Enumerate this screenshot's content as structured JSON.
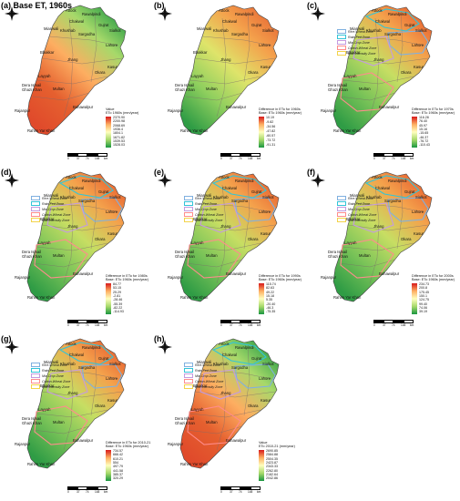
{
  "zones": [
    {
      "name": "Rice-Wheat Zone",
      "color": "#7fb0e0"
    },
    {
      "name": "Rain-Fed Zone",
      "color": "#33c4d8"
    },
    {
      "name": "Mix-Crop Zone",
      "color": "#c49be0"
    },
    {
      "name": "Cotton-Wheat Zone",
      "color": "#ff8c8c"
    },
    {
      "name": "Low-Intensity Zone",
      "color": "#f3d34a"
    }
  ],
  "panels": [
    {
      "label": "(a) Base ET, 1960s",
      "legend_title": [
        "Value",
        "ETo 1960s (mm/year)"
      ],
      "ticks": [
        "2370.90",
        "2200.98",
        "2068.69",
        "1936.4",
        "1804.1",
        "1671.82",
        "1539.53",
        "1528.03"
      ],
      "ramp": [
        "#d7191c",
        "#fdae61",
        "#ffffbf",
        "#a6d96a",
        "#1a9641"
      ],
      "gradient": [
        "#1a9641",
        "#a6d96a",
        "#fdae61",
        "#e5602f",
        "#e04a2b"
      ],
      "show_zones": false,
      "cities": [
        "Attock",
        "Rawalpindi",
        "Chakwal",
        "Mianwali",
        "Khushab",
        "Sargodha",
        "Bhakkar",
        "Jhang",
        "Layyah",
        "Dera Ismail Ghazi Khan",
        "Multan",
        "Bahawalpur",
        "Rajanpur",
        "Rahim Yar Khan",
        "Lahore",
        "Okara",
        "Kasur",
        "Gujrat",
        "Sialkot"
      ]
    },
    {
      "label": "(b)",
      "legend_title": [
        "Difference in ETo for 1960s",
        "Base: ETo 1960s (mm/year)"
      ],
      "ticks": [
        "10.19",
        "-9.82",
        "-34.56",
        "-47.82",
        "-60.57",
        "-73.72",
        "-91.31"
      ],
      "ramp": [
        "#d7191c",
        "#fdae61",
        "#ffffbf",
        "#a6d96a",
        "#1a9641"
      ],
      "gradient": [
        "#e66432",
        "#f4a24c",
        "#dfe46a",
        "#8fcf5e",
        "#2f9c45"
      ],
      "show_zones": false,
      "cities": [
        "Attock",
        "Rawalpindi",
        "Chakwal",
        "Mianwali",
        "Khushab",
        "Sargodha",
        "Bhakkar",
        "Jhang",
        "Layyah",
        "Dera Ismail Ghazi Khan",
        "Multan",
        "Bahawalpur",
        "Rajanpur",
        "Rahim Yar Khan",
        "Lahore",
        "Okara",
        "Kasur",
        "Gujrat",
        "Sialkot"
      ]
    },
    {
      "label": "(c)",
      "legend_title": [
        "Difference in ETo for 1970s",
        "Base: ETo 1960s (mm/year)"
      ],
      "ticks": [
        "116.28",
        "76.40",
        "45.97",
        "15.16",
        "-15.65",
        "-46.37",
        "-76.72",
        "-110.43"
      ],
      "ramp": [
        "#d7191c",
        "#fdae61",
        "#ffffbf",
        "#a6d96a",
        "#1a9641"
      ],
      "gradient": [
        "#e5572c",
        "#f4a24c",
        "#c7de63",
        "#79c358",
        "#2f9c45"
      ],
      "show_zones": true,
      "cities": [
        "Attock",
        "Rawalpindi",
        "Chakwal",
        "Mianwali",
        "Khushab",
        "Sargodha",
        "Bhakkar",
        "Jhang",
        "Layyah",
        "Dera Ismail Ghazi Khan",
        "Multan",
        "Bahawalpur",
        "Rajanpur",
        "Rahim Yar Khan",
        "Lahore",
        "Okara",
        "Kasur",
        "Gujrat",
        "Sialkot"
      ]
    },
    {
      "label": "(d)",
      "legend_title": [
        "Difference in ETo for 1980s",
        "Base: ETo 1960s (mm/year)"
      ],
      "ticks": [
        "84.77",
        "53.15",
        "25.29",
        "-2.81",
        "-28.46",
        "-55.39",
        "-82.22",
        "-114.93"
      ],
      "ramp": [
        "#d7191c",
        "#fdae61",
        "#ffffbf",
        "#a6d96a",
        "#1a9641"
      ],
      "gradient": [
        "#e5572c",
        "#f4a24c",
        "#c7de63",
        "#79c358",
        "#2f9c45"
      ],
      "show_zones": true,
      "cities": [
        "Attock",
        "Rawalpindi",
        "Chakwal",
        "Mianwali",
        "Khushab",
        "Sargodha",
        "Bhakkar",
        "Jhang",
        "Layyah",
        "Dera Ismail Ghazi Khan",
        "Multan",
        "Bahawalpur",
        "Rajanpur",
        "Rahim Yar Khan",
        "Lahore",
        "Okara",
        "Kasur",
        "Gujrat",
        "Sialkot"
      ]
    },
    {
      "label": "(e)",
      "legend_title": [
        "Difference in ETo for 1990s",
        "Base: ETo 1960s (mm/year)"
      ],
      "ticks": [
        "115.74",
        "82.63",
        "49.22",
        "15.18",
        "5.35",
        "-20.40",
        "-46.3",
        "-75.35"
      ],
      "ramp": [
        "#d7191c",
        "#fdae61",
        "#ffffbf",
        "#a6d96a",
        "#1a9641"
      ],
      "gradient": [
        "#e5572c",
        "#f4a24c",
        "#c7de63",
        "#79c358",
        "#2f9c45"
      ],
      "show_zones": true,
      "cities": [
        "Attock",
        "Rawalpindi",
        "Chakwal",
        "Mianwali",
        "Khushab",
        "Sargodha",
        "Bhakkar",
        "Jhang",
        "Layyah",
        "Dera Ismail Ghazi Khan",
        "Multan",
        "Bahawalpur",
        "Rajanpur",
        "Rahim Yar Khan",
        "Lahore",
        "Okara",
        "Kasur",
        "Gujrat",
        "Sialkot"
      ]
    },
    {
      "label": "(f)",
      "legend_title": [
        "Difference in ETo for 2000s",
        "Base: ETo 1960s (mm/year)"
      ],
      "ticks": [
        "234.73",
        "200.8",
        "175.45",
        "150.1",
        "124.75",
        "99.40",
        "74.06",
        "39.19"
      ],
      "ramp": [
        "#d7191c",
        "#fdae61",
        "#ffffbf",
        "#a6d96a",
        "#1a9641"
      ],
      "gradient": [
        "#e5572c",
        "#f4a24c",
        "#c7de63",
        "#79c358",
        "#2f9c45"
      ],
      "show_zones": true,
      "cities": [
        "Attock",
        "Rawalpindi",
        "Chakwal",
        "Mianwali",
        "Khushab",
        "Sargodha",
        "Bhakkar",
        "Jhang",
        "Layyah",
        "Dera Ismail Ghazi Khan",
        "Multan",
        "Bahawalpur",
        "Rajanpur",
        "Rahim Yar Khan",
        "Lahore",
        "Okara",
        "Kasur",
        "Gujrat",
        "Sialkot"
      ]
    },
    {
      "label": "(g)",
      "legend_title": [
        "Difference in ETo for 2010-21",
        "Base: ETo 1960s (mm/year)"
      ],
      "ticks": [
        "734.57",
        "666.42",
        "610.21",
        "554",
        "497.79",
        "441.58",
        "385.37",
        "320.29"
      ],
      "ramp": [
        "#d7191c",
        "#fdae61",
        "#ffffbf",
        "#a6d96a",
        "#1a9641"
      ],
      "gradient": [
        "#e5572c",
        "#f4a24c",
        "#c7de63",
        "#79c358",
        "#2f9c45"
      ],
      "show_zones": true,
      "cities": [
        "Attock",
        "Rawalpindi",
        "Chakwal",
        "Mianwali",
        "Khushab",
        "Sargodha",
        "Bhakkar",
        "Jhang",
        "Layyah",
        "Dera Ismail Ghazi Khan",
        "Multan",
        "Bahawalpur",
        "Rajanpur",
        "Rahim Yar Khan",
        "Lahore",
        "Okara",
        "Kasur",
        "Gujrat",
        "Sialkot"
      ]
    },
    {
      "label": "(h)",
      "legend_title": [
        "Value",
        "ETo 2010-21 (mm/year)"
      ],
      "ticks": [
        "2690.85",
        "2584.88",
        "2504.35",
        "2423.87",
        "2343.33",
        "2262.80",
        "2182.64",
        "2042.86"
      ],
      "ramp": [
        "#d7191c",
        "#fdae61",
        "#ffffbf",
        "#a6d96a",
        "#1a9641"
      ],
      "gradient": [
        "#1a9641",
        "#a6d96a",
        "#fdae61",
        "#e5602f",
        "#e04a2b"
      ],
      "show_zones": true,
      "cities": [
        "Attock",
        "Rawalpindi",
        "Chakwal",
        "Mianwali",
        "Khushab",
        "Sargodha",
        "Bhakkar",
        "Jhang",
        "Layyah",
        "Dera Ismail Ghazi Khan",
        "Multan",
        "Bahawalpur",
        "Rajanpur",
        "Rahim Yar Khan",
        "Lahore",
        "Okara",
        "Kasur",
        "Gujrat",
        "Sialkot"
      ]
    }
  ],
  "scale_labels": [
    "0",
    "37",
    "74",
    "148",
    "km"
  ]
}
